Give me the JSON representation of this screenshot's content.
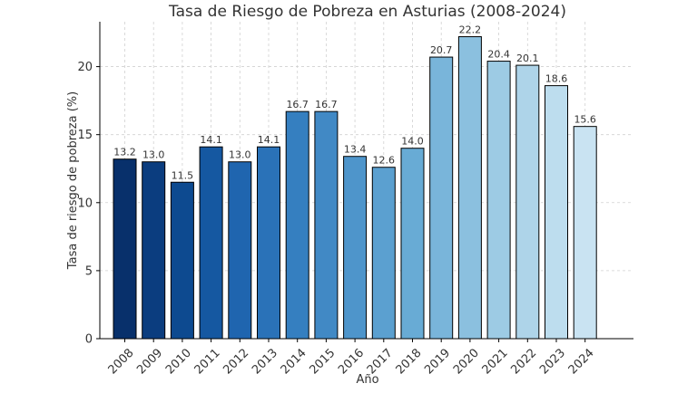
{
  "chart_data": {
    "type": "bar",
    "title": "Tasa de Riesgo de Pobreza en Asturias (2008-2024)",
    "xlabel": "Año",
    "ylabel": "Tasa de riesgo de pobreza (%)",
    "categories": [
      "2008",
      "2009",
      "2010",
      "2011",
      "2012",
      "2013",
      "2014",
      "2015",
      "2016",
      "2017",
      "2018",
      "2019",
      "2020",
      "2021",
      "2022",
      "2023",
      "2024"
    ],
    "values": [
      13.2,
      13.0,
      11.5,
      14.1,
      13.0,
      14.1,
      16.7,
      16.7,
      13.4,
      12.6,
      14.0,
      20.7,
      22.2,
      20.4,
      20.1,
      18.6,
      15.6
    ],
    "data_labels": [
      "13.2",
      "13.0",
      "11.5",
      "14.1",
      "13.0",
      "14.1",
      "16.7",
      "16.7",
      "13.4",
      "12.6",
      "14.0",
      "20.7",
      "22.2",
      "20.4",
      "20.1",
      "18.6",
      "15.6"
    ],
    "ylim": [
      0,
      23.3
    ],
    "yticks": [
      0,
      5,
      10,
      15,
      20
    ],
    "ytick_labels": [
      "0",
      "5",
      "10",
      "15",
      "20"
    ],
    "grid": true,
    "colors": [
      "#08306b",
      "#0b3d7f",
      "#0d4a90",
      "#1558a1",
      "#1f65af",
      "#2a72b8",
      "#357fc0",
      "#4189c5",
      "#4e95cb",
      "#5ba0d0",
      "#68abd5",
      "#79b5da",
      "#8bc0df",
      "#9dcbe4",
      "#aed4e9",
      "#bdddee",
      "#c9e3f2"
    ],
    "bar_edge_color": "#000000"
  }
}
